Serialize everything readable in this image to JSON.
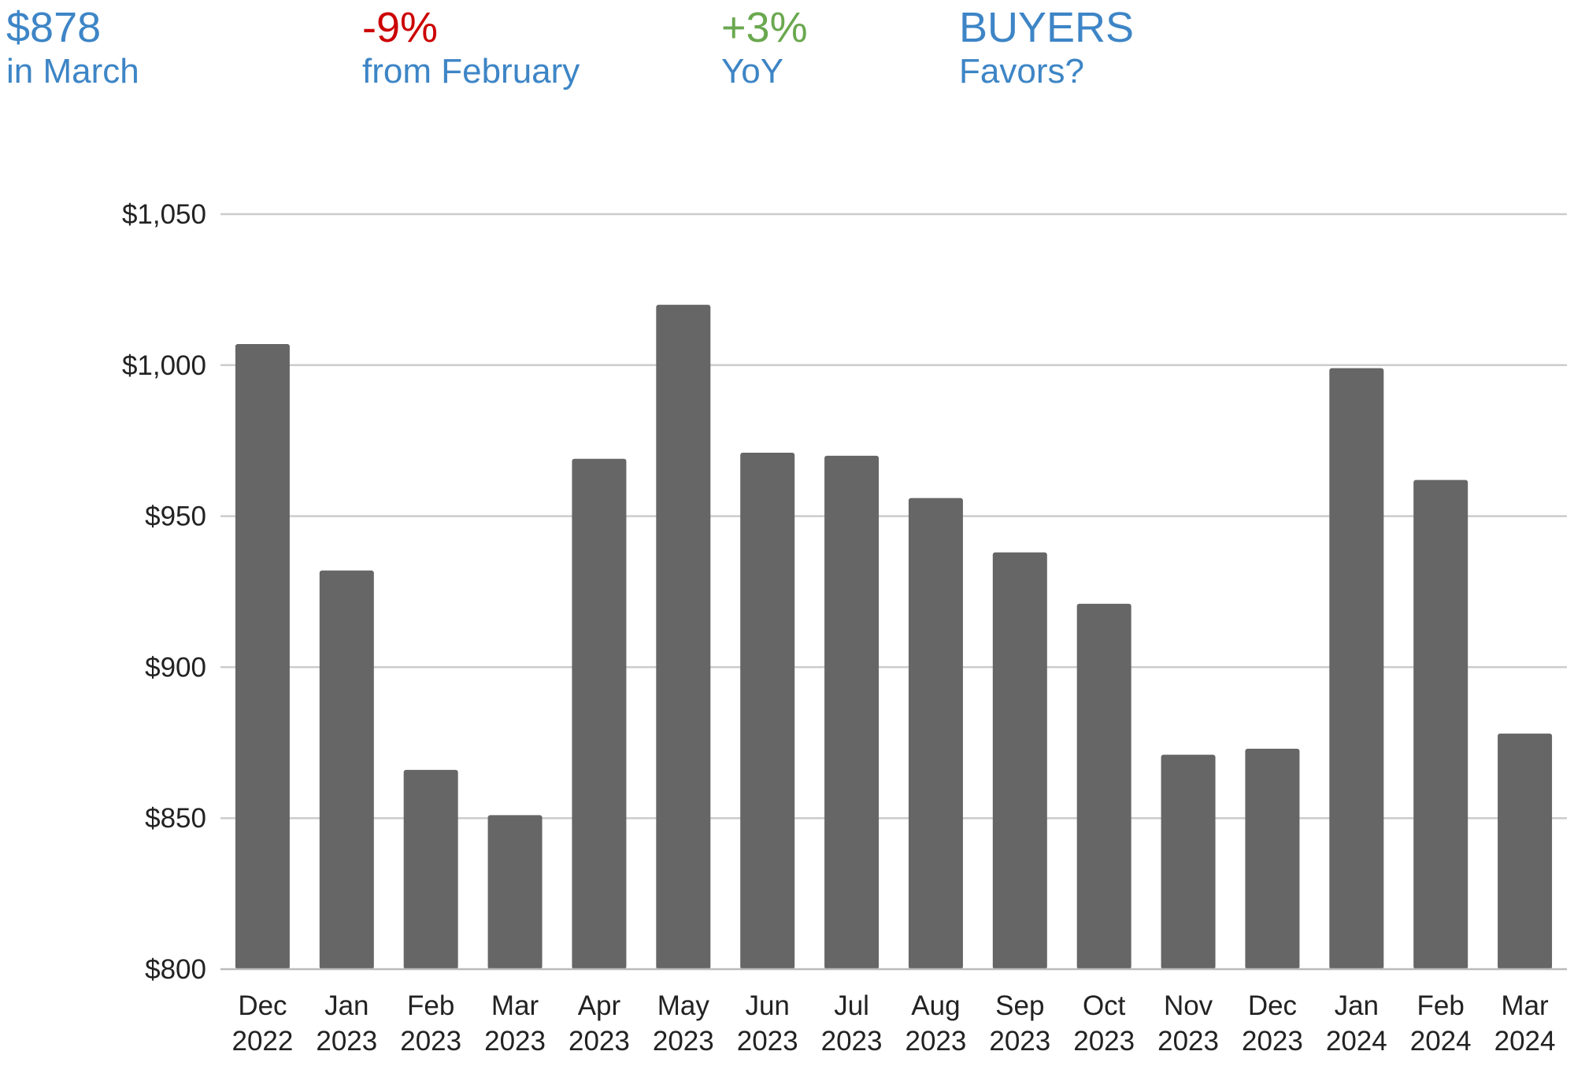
{
  "stats": [
    {
      "value": "$878",
      "label": "in March",
      "color": "#3d85c6"
    },
    {
      "value": "-9%",
      "label": "from February",
      "color": "#cc0000"
    },
    {
      "value": "+3%",
      "label": "YoY",
      "color": "#6aa84f"
    },
    {
      "value": "BUYERS",
      "label": "Favors?",
      "color": "#3d85c6"
    }
  ],
  "chart_data": {
    "type": "bar",
    "categories": [
      [
        "Dec",
        "2022"
      ],
      [
        "Jan",
        "2023"
      ],
      [
        "Feb",
        "2023"
      ],
      [
        "Mar",
        "2023"
      ],
      [
        "Apr",
        "2023"
      ],
      [
        "May",
        "2023"
      ],
      [
        "Jun",
        "2023"
      ],
      [
        "Jul",
        "2023"
      ],
      [
        "Aug",
        "2023"
      ],
      [
        "Sep",
        "2023"
      ],
      [
        "Oct",
        "2023"
      ],
      [
        "Nov",
        "2023"
      ],
      [
        "Dec",
        "2023"
      ],
      [
        "Jan",
        "2024"
      ],
      [
        "Feb",
        "2024"
      ],
      [
        "Mar",
        "2024"
      ]
    ],
    "values": [
      1007,
      932,
      866,
      851,
      969,
      1020,
      971,
      970,
      956,
      938,
      921,
      871,
      873,
      999,
      962,
      878
    ],
    "ylim": [
      800,
      1050
    ],
    "yticks": [
      800,
      850,
      900,
      950,
      1000,
      1050
    ],
    "ytick_labels": [
      "$800",
      "$850",
      "$900",
      "$950",
      "$1,000",
      "$1,050"
    ],
    "grid": true,
    "bar_color": "#666666",
    "grid_color": "#cccccc",
    "axis_color": "#bbbbbb"
  }
}
